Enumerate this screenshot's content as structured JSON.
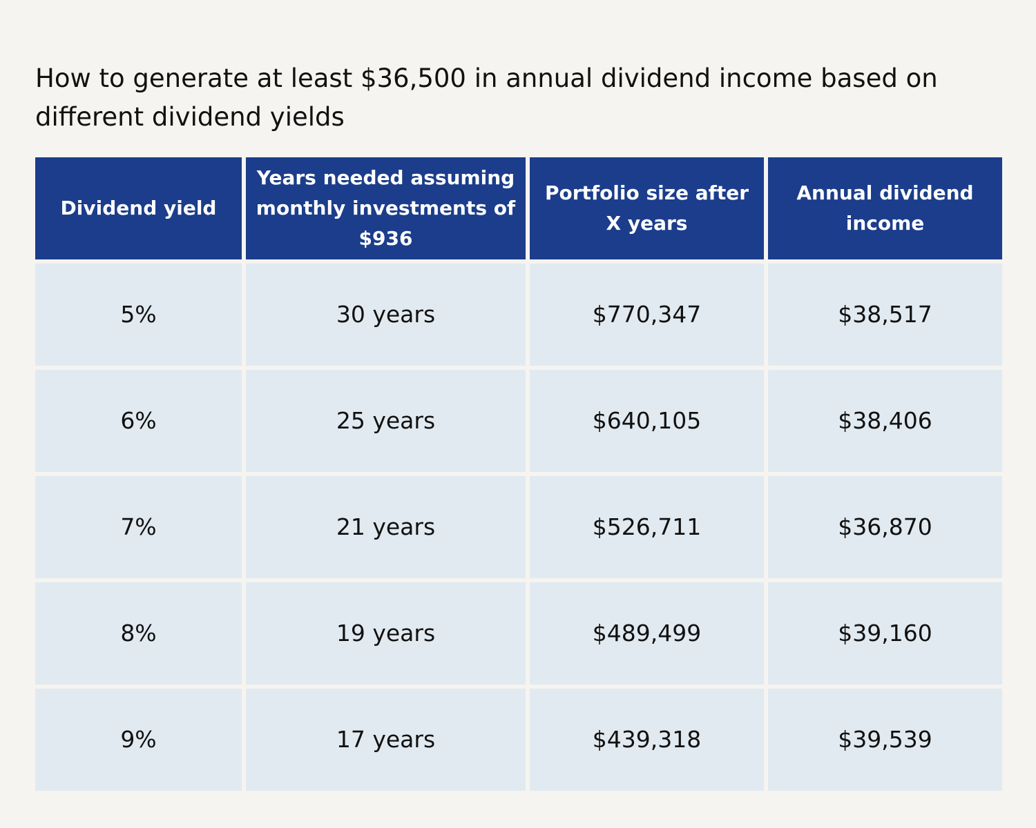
{
  "chart_data": {
    "type": "table",
    "title": "How to generate at least $36,500 in annual dividend income based on different dividend yields",
    "columns": [
      "Dividend yield",
      "Years needed assuming monthly investments of $936",
      "Portfolio size after X years",
      "Annual dividend income"
    ],
    "rows": [
      [
        "5%",
        "30 years",
        "$770,347",
        "$38,517"
      ],
      [
        "6%",
        "25 years",
        "$640,105",
        "$38,406"
      ],
      [
        "7%",
        "21 years",
        "$526,711",
        "$36,870"
      ],
      [
        "8%",
        "19 years",
        "$489,499",
        "$39,160"
      ],
      [
        "9%",
        "17 years",
        "$439,318",
        "$39,539"
      ]
    ]
  },
  "colors": {
    "background": "#f6f4f0",
    "header_fill": "#1b3d8b",
    "header_text": "#ffffff",
    "row_fill": "#e1eaf0",
    "body_text": "#111111"
  }
}
